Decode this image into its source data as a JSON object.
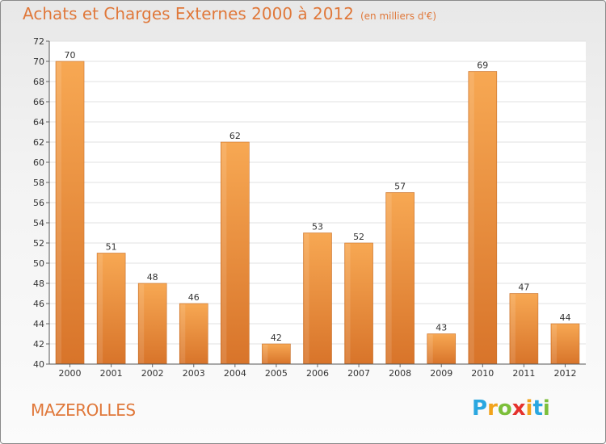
{
  "title": "Achats et Charges Externes 2000 à 2012",
  "unit_note": "(en milliers d'€)",
  "commune": "MAZEROLLES",
  "logo": {
    "text": "Proxiti",
    "letters": [
      "P",
      "r",
      "o",
      "x",
      "i",
      "t",
      "i"
    ],
    "colors": [
      "#2aa7e0",
      "#f2a31b",
      "#7cbf3a",
      "#e5322d",
      "#f2a31b",
      "#2aa7e0",
      "#7cbf3a"
    ]
  },
  "colors": {
    "bar": "#f0923a",
    "bar_light": "#f7ac5c",
    "bar_dark": "#d9782a",
    "title": "#e0783a"
  },
  "chart_data": {
    "type": "bar",
    "categories": [
      "2000",
      "2001",
      "2002",
      "2003",
      "2004",
      "2005",
      "2006",
      "2007",
      "2008",
      "2009",
      "2010",
      "2011",
      "2012"
    ],
    "values": [
      70,
      51,
      48,
      46,
      62,
      42,
      53,
      52,
      57,
      43,
      69,
      47,
      44
    ],
    "title": "Achats et Charges Externes 2000 à 2012",
    "ylim": [
      40,
      72
    ],
    "yticks": [
      40,
      42,
      44,
      46,
      48,
      50,
      52,
      54,
      56,
      58,
      60,
      62,
      64,
      66,
      68,
      70,
      72
    ],
    "grid": true,
    "legend": "none"
  }
}
